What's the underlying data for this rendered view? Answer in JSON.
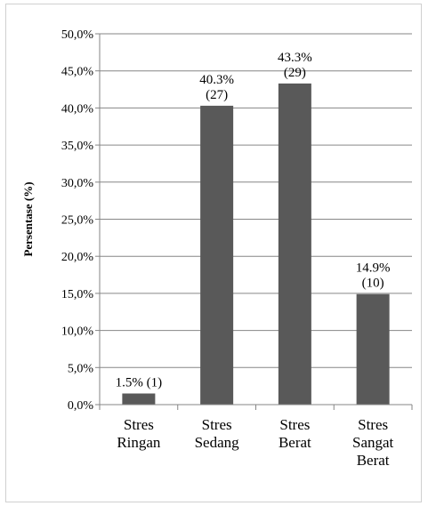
{
  "chart_data": {
    "type": "bar",
    "title": "",
    "xlabel": "",
    "ylabel": "Persentase (%)",
    "ylim": [
      0,
      50
    ],
    "y_ticks": [
      0,
      5,
      10,
      15,
      20,
      25,
      30,
      35,
      40,
      45,
      50
    ],
    "y_tick_labels": [
      "0,0%",
      "5,0%",
      "10,0%",
      "15,0%",
      "20,0%",
      "25,0%",
      "30,0%",
      "35,0%",
      "40,0%",
      "45,0%",
      "50,0%"
    ],
    "categories": [
      [
        "Stres",
        "Ringan"
      ],
      [
        "Stres",
        "Sedang"
      ],
      [
        "Stres",
        "Berat"
      ],
      [
        "Stres",
        "Sangat",
        "Berat"
      ]
    ],
    "values": [
      1.5,
      40.3,
      43.3,
      14.9
    ],
    "data_labels": [
      [
        "1.5% (1)"
      ],
      [
        "40.3%",
        "(27)"
      ],
      [
        "43.3%",
        "(29)"
      ],
      [
        "14.9%",
        "(10)"
      ]
    ],
    "grid": true,
    "bar_color": "#595959",
    "grid_color": "#868686"
  }
}
